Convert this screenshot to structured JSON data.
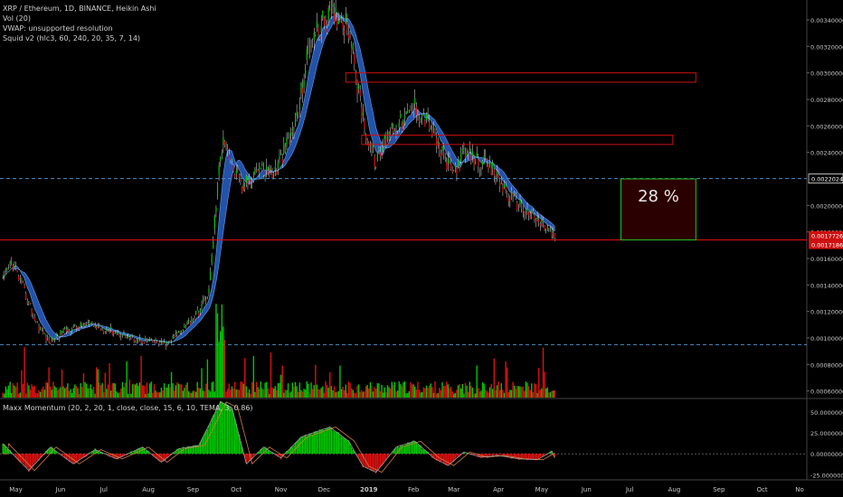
{
  "colors": {
    "background": "#000000",
    "bull": "#00c800",
    "bear": "#e01010",
    "ribbon": "#2a60c8",
    "dashed_line": "#4a90c8",
    "box_red": "#d01010",
    "box_green": "#20c020",
    "axis_text": "#c8c8c8",
    "badge_price": "#d01010",
    "badge_line": "#ffffff"
  },
  "legend": {
    "title": "XRP / Ethereum, 1D, BINANCE, Heikin Ashi",
    "vol": "Vol (20)",
    "vwap": "VWAP: unsupported resolution",
    "squid": "Squid v2 (hlc3, 60, 240, 20, 35, 7, 14)"
  },
  "momentum_legend": "Maxx Momentum (20, 2, 20, 1, close, close, 15, 6, 10, TEMA, 3, 0.86)",
  "annotation_text": "28 %",
  "price_axis": {
    "ticks": [
      "0.00340000",
      "0.00320000",
      "0.00300000",
      "0.00280000",
      "0.00260000",
      "0.00240000",
      "0.00200000",
      "0.00180000",
      "0.00160000",
      "0.00140000",
      "0.00120000",
      "0.00100000",
      "0.00080000",
      "0.00060000"
    ],
    "badges": [
      {
        "label": "0.00220247",
        "value": 0.00220247,
        "style": "line"
      },
      {
        "label": "0.00177261",
        "value": 0.00177261,
        "style": "price"
      },
      {
        "label": "0.00171864",
        "value": 0.00171864,
        "style": "price"
      }
    ]
  },
  "momentum_axis": {
    "ticks": [
      "50.0000000",
      "25.0000000",
      "0.00000000",
      "-25.0000000"
    ]
  },
  "time_axis": {
    "labels": [
      "May",
      "Jun",
      "Jul",
      "Aug",
      "Sep",
      "Oct",
      "Nov",
      "Dec",
      "2019",
      "Feb",
      "Mar",
      "Apr",
      "May",
      "Jun",
      "Jul",
      "Aug",
      "Sep",
      "Oct",
      "No"
    ]
  },
  "chart_data": {
    "type": "candlestick",
    "title": "XRP / Ethereum, 1D, BINANCE, Heikin Ashi",
    "x_range": [
      "2018-04-20",
      "2019-11-01"
    ],
    "y_range": [
      0.00055,
      0.00355
    ],
    "price_path": [
      [
        "2018-04-22",
        0.00142
      ],
      [
        "2018-04-28",
        0.00158
      ],
      [
        "2018-05-05",
        0.0014
      ],
      [
        "2018-05-15",
        0.00112
      ],
      [
        "2018-05-24",
        0.00097
      ],
      [
        "2018-06-05",
        0.00106
      ],
      [
        "2018-06-20",
        0.0011
      ],
      [
        "2018-07-05",
        0.00106
      ],
      [
        "2018-07-20",
        0.001
      ],
      [
        "2018-08-05",
        0.00097
      ],
      [
        "2018-08-14",
        0.00095
      ],
      [
        "2018-08-25",
        0.00108
      ],
      [
        "2018-09-05",
        0.0012
      ],
      [
        "2018-09-12",
        0.00135
      ],
      [
        "2018-09-18",
        0.00215
      ],
      [
        "2018-09-22",
        0.00255
      ],
      [
        "2018-09-28",
        0.0023
      ],
      [
        "2018-10-05",
        0.00212
      ],
      [
        "2018-10-15",
        0.00228
      ],
      [
        "2018-10-28",
        0.00225
      ],
      [
        "2018-11-06",
        0.00248
      ],
      [
        "2018-11-12",
        0.00265
      ],
      [
        "2018-11-18",
        0.00305
      ],
      [
        "2018-11-22",
        0.00325
      ],
      [
        "2018-12-02",
        0.0034
      ],
      [
        "2018-12-12",
        0.00345
      ],
      [
        "2018-12-18",
        0.00335
      ],
      [
        "2018-12-24",
        0.0029
      ],
      [
        "2018-12-30",
        0.00255
      ],
      [
        "2019-01-06",
        0.00232
      ],
      [
        "2019-01-15",
        0.00258
      ],
      [
        "2019-01-25",
        0.00263
      ],
      [
        "2019-02-02",
        0.00275
      ],
      [
        "2019-02-12",
        0.00262
      ],
      [
        "2019-02-20",
        0.0024
      ],
      [
        "2019-02-28",
        0.00225
      ],
      [
        "2019-03-08",
        0.00238
      ],
      [
        "2019-03-18",
        0.00234
      ],
      [
        "2019-03-28",
        0.00226
      ],
      [
        "2019-04-08",
        0.00208
      ],
      [
        "2019-04-18",
        0.00198
      ],
      [
        "2019-04-26",
        0.0019
      ],
      [
        "2019-05-04",
        0.00184
      ],
      [
        "2019-05-10",
        0.00176
      ]
    ],
    "reference_lines": [
      {
        "value": 0.00220247,
        "style": "dashed"
      },
      {
        "value": 0.00174,
        "style": "solid"
      },
      {
        "value": 0.00095,
        "style": "dashed"
      }
    ],
    "zones": [
      {
        "color": "red",
        "x_start": "2018-12-16",
        "x_end": "2019-08-16",
        "y_low": 0.00293,
        "y_high": 0.003
      },
      {
        "color": "red",
        "x_start": "2018-12-27",
        "x_end": "2019-07-31",
        "y_low": 0.00246,
        "y_high": 0.00253
      },
      {
        "color": "green",
        "x_start": "2019-06-25",
        "x_end": "2019-08-16",
        "y_low": 0.00174,
        "y_high": 0.0022,
        "label": "28 %"
      }
    ],
    "volume": {
      "y_max": 0.00088,
      "baseline": 0.00055
    },
    "momentum": {
      "y_range": [
        -30,
        65
      ],
      "path": [
        [
          "2018-04-22",
          12
        ],
        [
          "2018-05-10",
          -20
        ],
        [
          "2018-05-25",
          8
        ],
        [
          "2018-06-10",
          -12
        ],
        [
          "2018-06-25",
          5
        ],
        [
          "2018-07-10",
          -6
        ],
        [
          "2018-07-28",
          8
        ],
        [
          "2018-08-10",
          -10
        ],
        [
          "2018-08-22",
          6
        ],
        [
          "2018-09-05",
          10
        ],
        [
          "2018-09-20",
          62
        ],
        [
          "2018-09-28",
          55
        ],
        [
          "2018-10-08",
          -12
        ],
        [
          "2018-10-20",
          8
        ],
        [
          "2018-11-01",
          -5
        ],
        [
          "2018-11-15",
          20
        ],
        [
          "2018-12-05",
          32
        ],
        [
          "2018-12-18",
          15
        ],
        [
          "2018-12-28",
          -15
        ],
        [
          "2019-01-06",
          -22
        ],
        [
          "2019-01-20",
          8
        ],
        [
          "2019-02-02",
          15
        ],
        [
          "2019-02-15",
          -5
        ],
        [
          "2019-02-25",
          -14
        ],
        [
          "2019-03-08",
          2
        ],
        [
          "2019-03-20",
          -4
        ],
        [
          "2019-04-01",
          -2
        ],
        [
          "2019-04-15",
          -6
        ],
        [
          "2019-04-28",
          -7
        ],
        [
          "2019-05-08",
          3
        ],
        [
          "2019-05-10",
          -5
        ]
      ]
    }
  }
}
